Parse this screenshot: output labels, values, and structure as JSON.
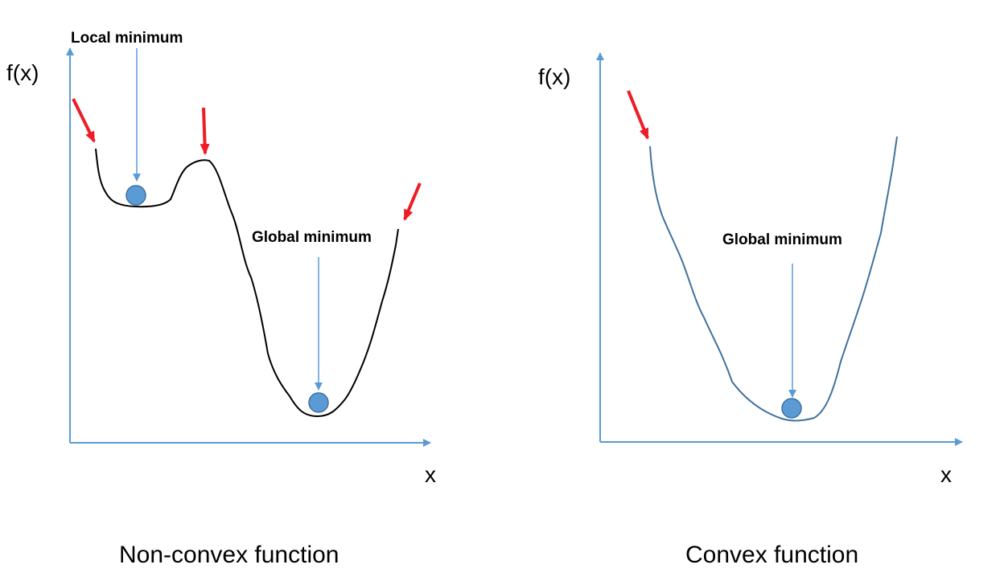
{
  "colors": {
    "axis": "#5b9bd5",
    "marker": "#5b9bd5",
    "descent_arrow": "#ee1c25",
    "non_convex_curve": "#000000",
    "convex_curve": "#41719c"
  },
  "non_convex": {
    "y_axis_label": "f(x)",
    "x_axis_label": "x",
    "local_minimum_label": "Local minimum",
    "global_minimum_label": "Global minimum",
    "caption": "Non-convex function"
  },
  "convex": {
    "y_axis_label": "f(x)",
    "x_axis_label": "x",
    "global_minimum_label": "Global minimum",
    "caption": "Convex function"
  }
}
